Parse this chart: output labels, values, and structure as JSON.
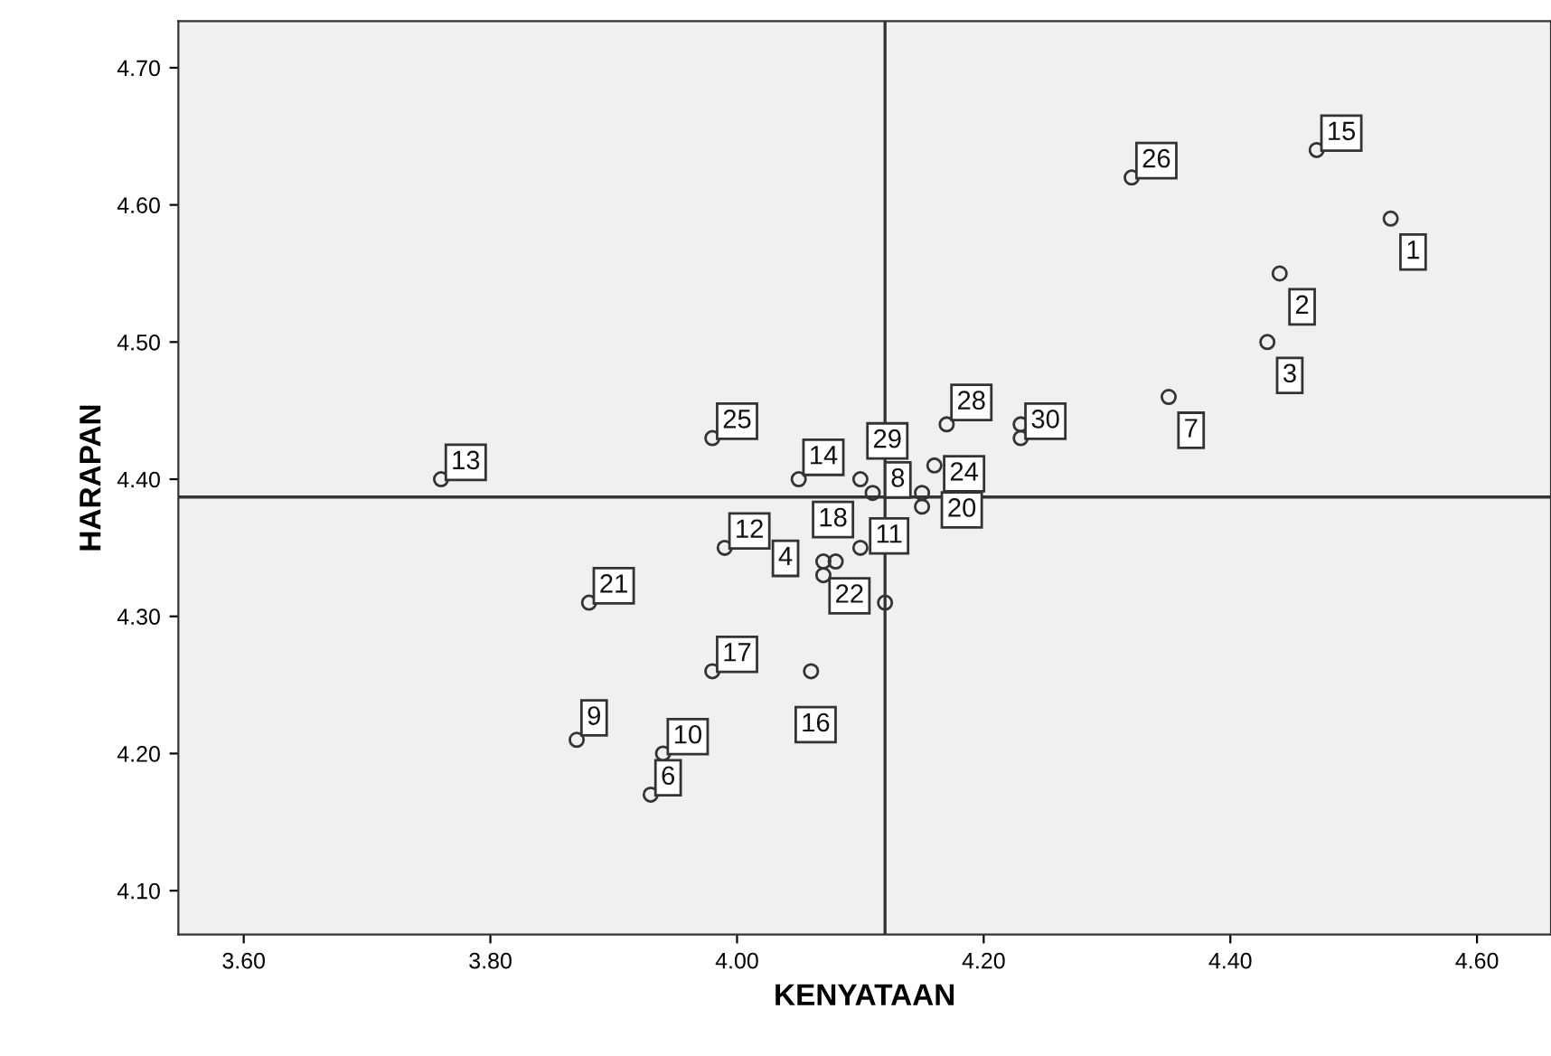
{
  "chart_data": {
    "type": "scatter",
    "xlabel": "KENYATAAN",
    "ylabel": "HARAPAN",
    "marker": "circle",
    "grid": false,
    "series": [
      {
        "color": "#333333",
        "x": [
          4.53,
          4.44,
          4.43,
          4.35,
          4.47,
          4.32,
          3.76,
          3.98,
          4.17,
          4.23,
          4.23,
          4.16,
          4.15,
          4.15,
          4.1,
          4.11,
          4.05,
          4.1,
          4.07,
          4.08,
          4.07,
          4.12,
          4.06,
          3.98,
          3.99,
          3.88,
          3.87,
          3.94,
          3.93
        ],
        "values": [
          4.59,
          4.55,
          4.5,
          4.46,
          4.64,
          4.62,
          4.4,
          4.43,
          4.44,
          4.44,
          4.43,
          4.41,
          4.39,
          4.38,
          4.4,
          4.39,
          4.4,
          4.35,
          4.34,
          4.34,
          4.33,
          4.31,
          4.26,
          4.26,
          4.35,
          4.31,
          4.21,
          4.2,
          4.17
        ]
      }
    ],
    "annotations": [
      {
        "text": "1",
        "x": 4.53,
        "y": 4.59
      },
      {
        "text": "2",
        "x": 4.44,
        "y": 4.55
      },
      {
        "text": "3",
        "x": 4.43,
        "y": 4.5
      },
      {
        "text": "7",
        "x": 4.35,
        "y": 4.46
      },
      {
        "text": "15",
        "x": 4.47,
        "y": 4.64
      },
      {
        "text": "26",
        "x": 4.32,
        "y": 4.62
      },
      {
        "text": "13",
        "x": 3.76,
        "y": 4.4
      },
      {
        "text": "25",
        "x": 3.98,
        "y": 4.43
      },
      {
        "text": "28",
        "x": 4.17,
        "y": 4.44
      },
      {
        "text": "30",
        "x": 4.23,
        "y": 4.43
      },
      {
        "text": "24",
        "x": 4.16,
        "y": 4.41
      },
      {
        "text": "20",
        "x": 4.15,
        "y": 4.38
      },
      {
        "text": "8",
        "x": 4.1,
        "y": 4.4
      },
      {
        "text": "29",
        "x": 4.11,
        "y": 4.39
      },
      {
        "text": "14",
        "x": 4.05,
        "y": 4.4
      },
      {
        "text": "11",
        "x": 4.1,
        "y": 4.35
      },
      {
        "text": "18",
        "x": 4.07,
        "y": 4.34
      },
      {
        "text": "4",
        "x": 4.07,
        "y": 4.33
      },
      {
        "text": "22",
        "x": 4.12,
        "y": 4.31
      },
      {
        "text": "16",
        "x": 4.06,
        "y": 4.26
      },
      {
        "text": "17",
        "x": 3.98,
        "y": 4.26
      },
      {
        "text": "12",
        "x": 3.99,
        "y": 4.35
      },
      {
        "text": "21",
        "x": 3.88,
        "y": 4.31
      },
      {
        "text": "9",
        "x": 3.87,
        "y": 4.21
      },
      {
        "text": "10",
        "x": 3.94,
        "y": 4.2
      },
      {
        "text": "6",
        "x": 3.93,
        "y": 4.17
      }
    ],
    "ref_lines": [
      {
        "axis": "x",
        "value": 4.12,
        "color": "#333333"
      },
      {
        "axis": "y",
        "value": 4.387,
        "color": "#333333"
      }
    ],
    "xlim": [
      3.547,
      4.66
    ],
    "ylim": [
      4.068,
      4.734
    ],
    "xticks": [
      {
        "value": 3.6,
        "label": "3.60"
      },
      {
        "value": 3.8,
        "label": "3.80"
      },
      {
        "value": 4.0,
        "label": "4.00"
      },
      {
        "value": 4.2,
        "label": "4.20"
      },
      {
        "value": 4.4,
        "label": "4.40"
      },
      {
        "value": 4.6,
        "label": "4.60"
      }
    ],
    "yticks": [
      {
        "value": 4.1,
        "label": "4.10"
      },
      {
        "value": 4.2,
        "label": "4.20"
      },
      {
        "value": 4.3,
        "label": "4.30"
      },
      {
        "value": 4.4,
        "label": "4.40"
      },
      {
        "value": 4.5,
        "label": "4.50"
      },
      {
        "value": 4.6,
        "label": "4.60"
      },
      {
        "value": 4.7,
        "label": "4.70"
      }
    ]
  }
}
